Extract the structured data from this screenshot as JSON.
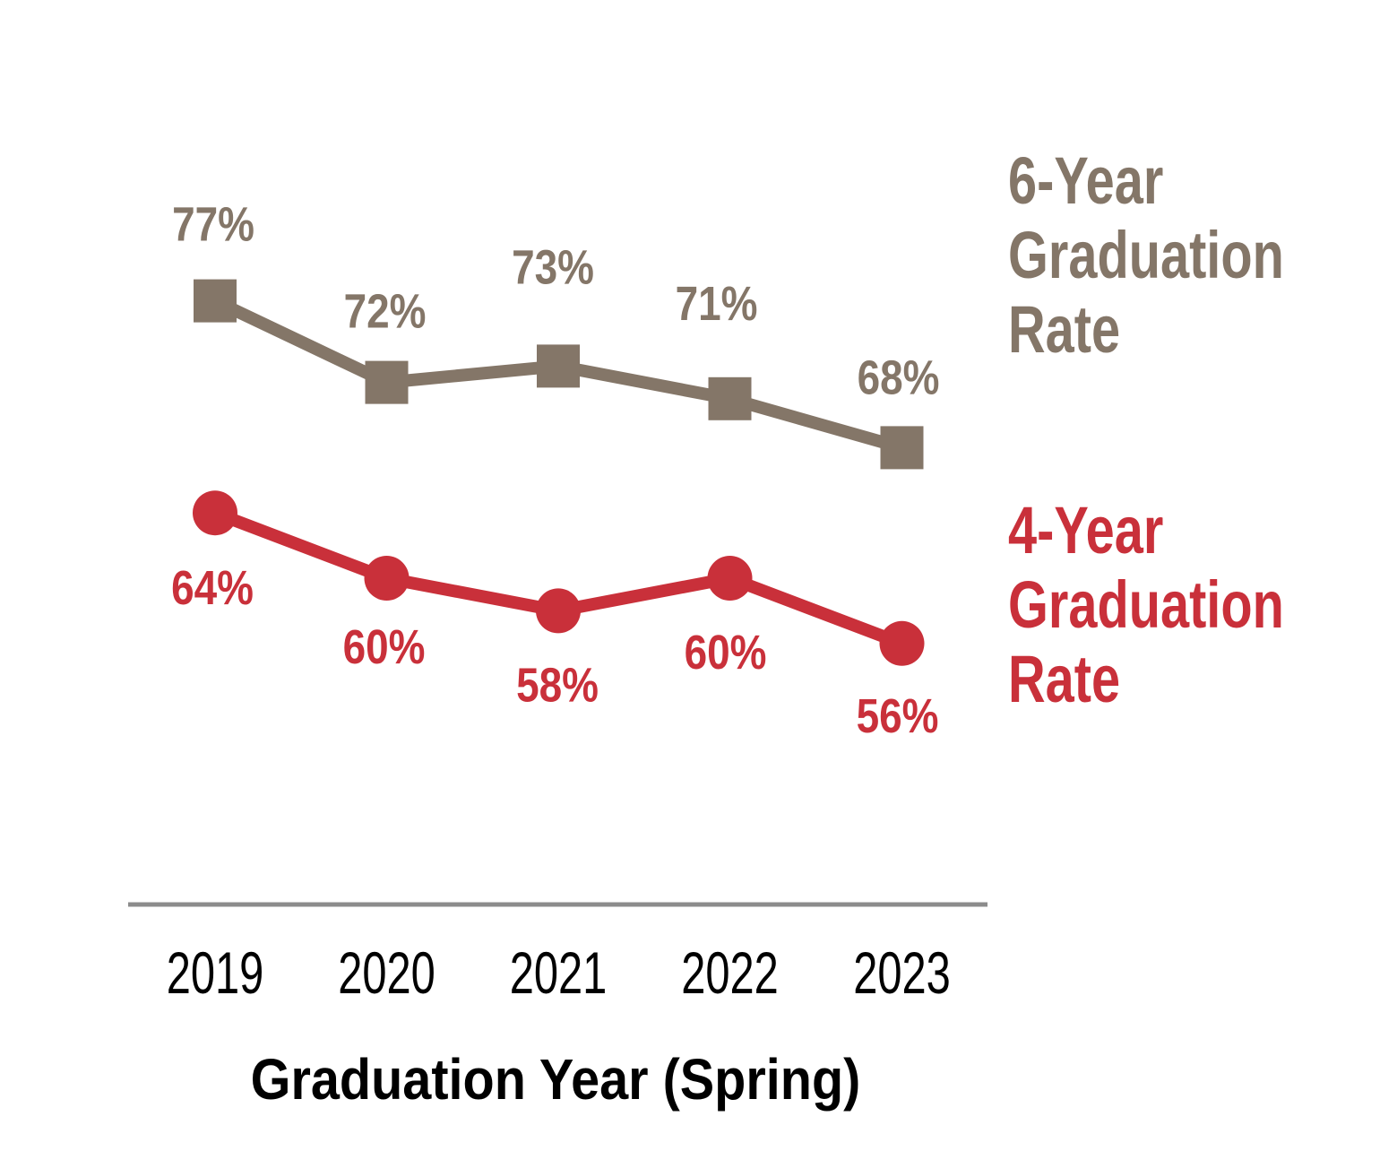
{
  "chart_data": {
    "type": "line",
    "title": "",
    "categories": [
      "2019",
      "2020",
      "2021",
      "2022",
      "2023"
    ],
    "series": [
      {
        "name": "6-Year Graduation Rate",
        "values": [
          77,
          72,
          73,
          71,
          68
        ],
        "labels": [
          "77%",
          "72%",
          "73%",
          "71%",
          "68%"
        ],
        "color": "#847668",
        "marker": "square",
        "label_position": "above"
      },
      {
        "name": "4-Year Graduation Rate",
        "values": [
          64,
          60,
          58,
          60,
          56
        ],
        "labels": [
          "64%",
          "60%",
          "58%",
          "60%",
          "56%"
        ],
        "color": "#C9303A",
        "marker": "circle",
        "label_position": "below"
      }
    ],
    "xlabel": "Graduation Year (Spring)",
    "ylabel": "",
    "ylim": [
      40,
      85
    ],
    "grid": false,
    "legend_position": "right",
    "axis_color": "#8C8C8C",
    "tick_color": "#000000"
  }
}
